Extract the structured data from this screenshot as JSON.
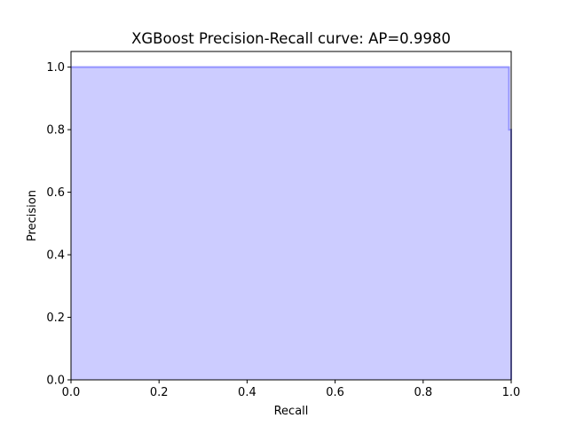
{
  "chart_data": {
    "type": "area",
    "title": "XGBoost Precision-Recall curve: AP=0.9980",
    "xlabel": "Recall",
    "ylabel": "Precision",
    "xlim": [
      0.0,
      1.0
    ],
    "ylim": [
      0.0,
      1.05
    ],
    "x_ticks": [
      "0.0",
      "0.2",
      "0.4",
      "0.6",
      "0.8",
      "1.0"
    ],
    "y_ticks": [
      "0.0",
      "0.2",
      "0.4",
      "0.6",
      "0.8",
      "1.0"
    ],
    "x_tick_values": [
      0.0,
      0.2,
      0.4,
      0.6,
      0.8,
      1.0
    ],
    "y_tick_values": [
      0.0,
      0.2,
      0.4,
      0.6,
      0.8,
      1.0
    ],
    "grid": false,
    "step": "post",
    "fill_color": "#ccccff",
    "line_color": "#8080ff",
    "series": [
      {
        "x": [
          0.0,
          0.995,
          0.995,
          1.0,
          1.0
        ],
        "y": [
          1.0,
          1.0,
          0.8,
          0.8,
          0.0
        ]
      }
    ]
  }
}
